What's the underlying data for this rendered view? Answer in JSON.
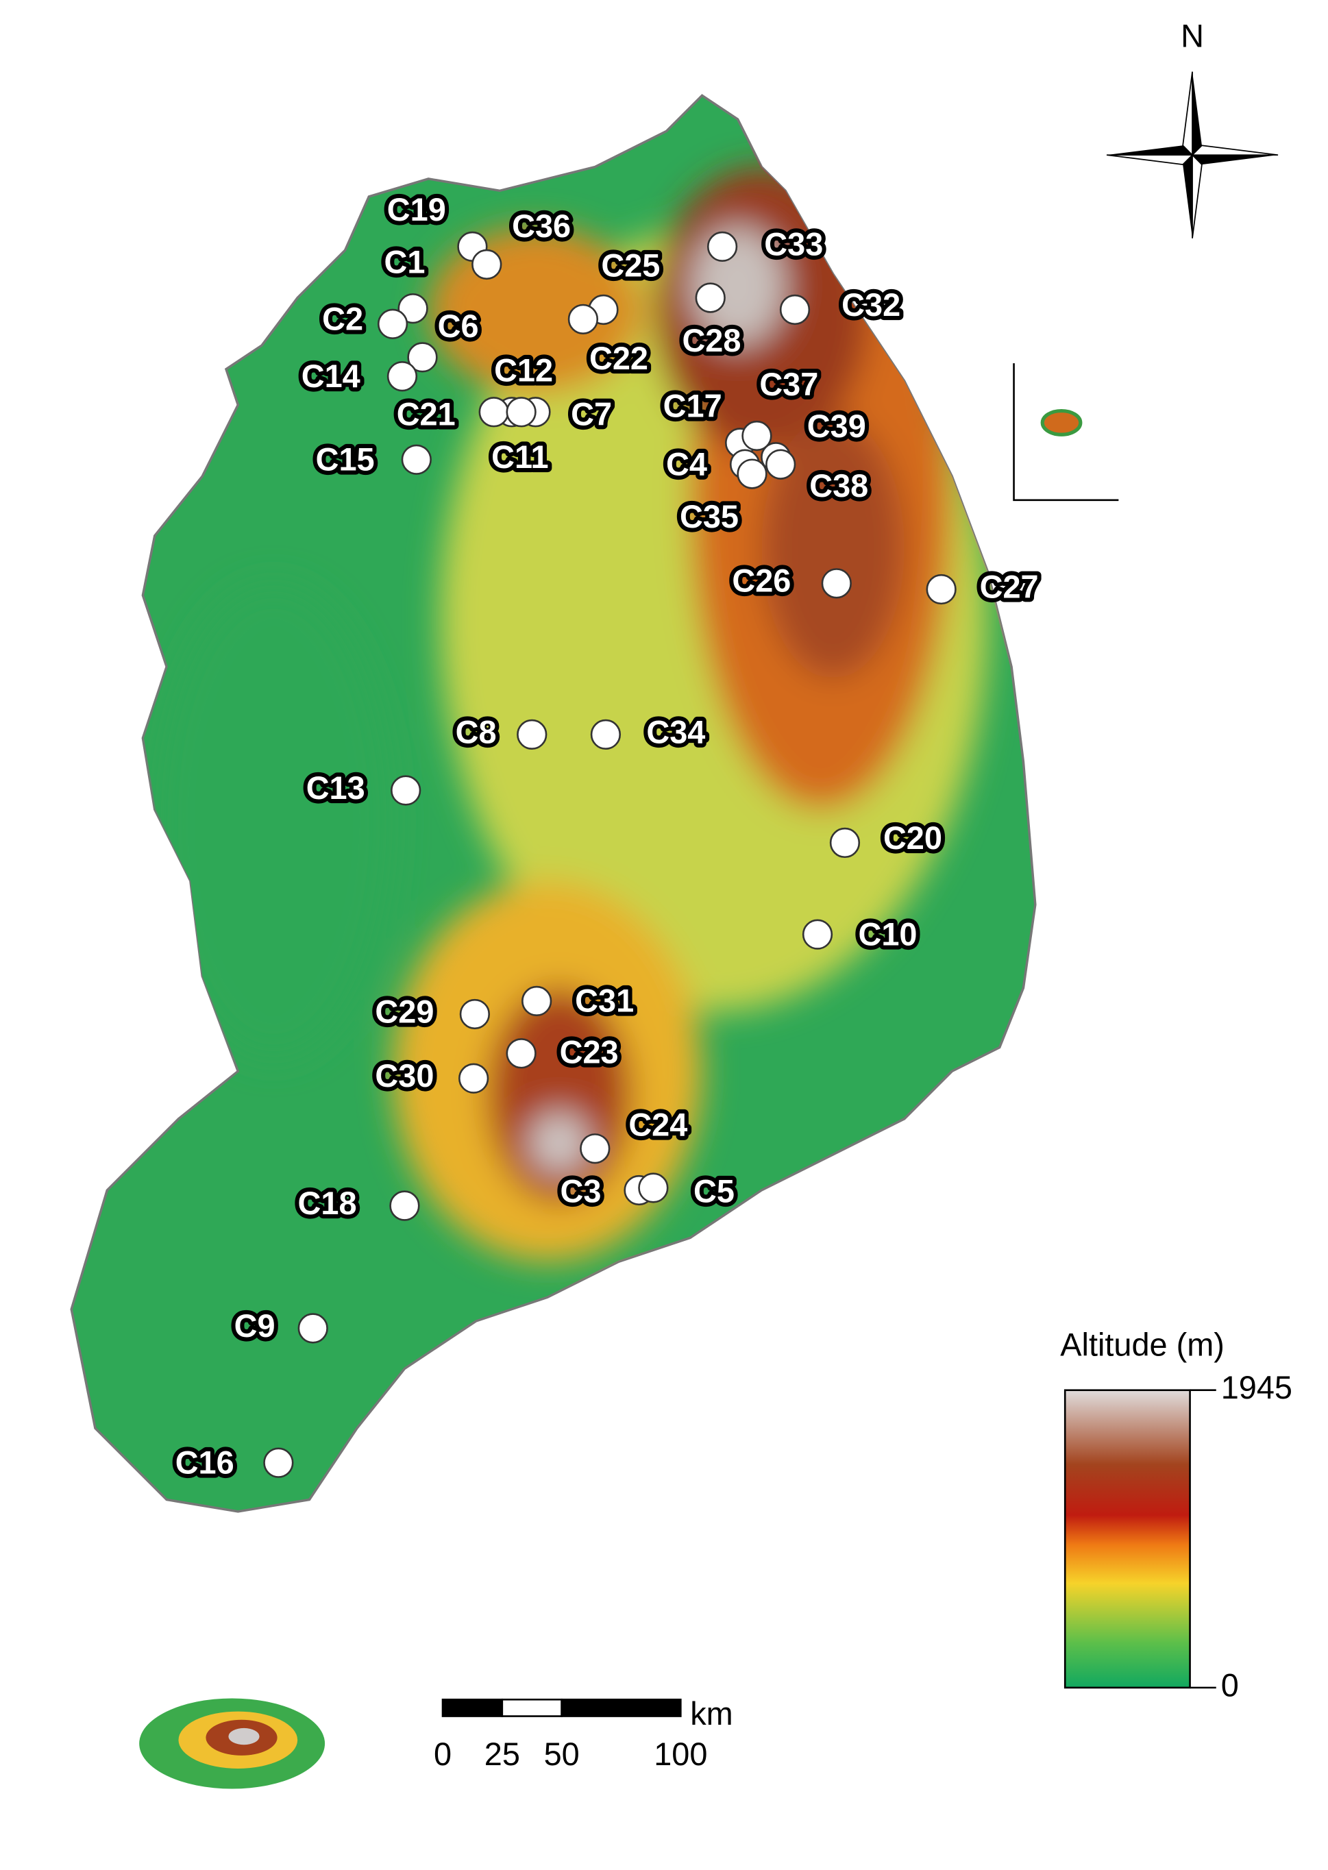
{
  "map": {
    "north_label": "N",
    "sites": [
      "C19",
      "C36",
      "C1",
      "C2",
      "C6",
      "C14",
      "C12",
      "C21",
      "C7",
      "C11",
      "C15",
      "C25",
      "C22",
      "C33",
      "C28",
      "C32",
      "C17",
      "C37",
      "C39",
      "C4",
      "C38",
      "C35",
      "C26",
      "C27",
      "C8",
      "C34",
      "C13",
      "C20",
      "C10",
      "C29",
      "C31",
      "C23",
      "C30",
      "C24",
      "C3",
      "C5",
      "C18",
      "C9",
      "C16"
    ],
    "legend": {
      "title": "Altitude (m)",
      "ticks": [
        1945,
        0
      ]
    },
    "scale_bar": {
      "unit": "km",
      "ticks": [
        0,
        25,
        50,
        100
      ]
    }
  }
}
